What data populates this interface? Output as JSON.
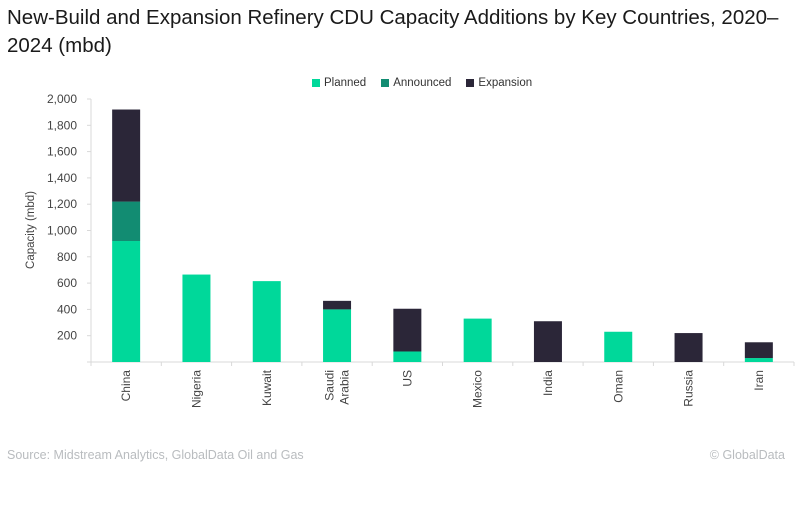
{
  "chart_data": {
    "type": "bar",
    "stacked": true,
    "title": "New-Build and Expansion Refinery CDU Capacity Additions by Key Countries, 2020–2024 (mbd)",
    "xlabel": "",
    "ylabel": "Capacity (mbd)",
    "ylim": [
      0,
      2000
    ],
    "yticks": [
      200,
      400,
      600,
      800,
      1000,
      1200,
      1400,
      1600,
      1800,
      2000
    ],
    "ytick_labels": [
      "200",
      "400",
      "600",
      "800",
      "1,000",
      "1,200",
      "1,400",
      "1,600",
      "1,800",
      "2,000"
    ],
    "grid": false,
    "legend_position": "top-center",
    "categories": [
      "China",
      "Nigeria",
      "Kuwait",
      "Saudi Arabia",
      "US",
      "Mexico",
      "India",
      "Oman",
      "Russia",
      "Iran"
    ],
    "category_label_lines": [
      [
        "China"
      ],
      [
        "Nigeria"
      ],
      [
        "Kuwait"
      ],
      [
        "Saudi",
        "Arabia"
      ],
      [
        "US"
      ],
      [
        "Mexico"
      ],
      [
        "India"
      ],
      [
        "Oman"
      ],
      [
        "Russia"
      ],
      [
        "Iran"
      ]
    ],
    "series": [
      {
        "name": "Planned",
        "color": "#00d89a",
        "values": [
          920,
          665,
          615,
          400,
          80,
          330,
          0,
          230,
          0,
          30
        ]
      },
      {
        "name": "Announced",
        "color": "#128c72",
        "values": [
          300,
          0,
          0,
          0,
          0,
          0,
          0,
          0,
          0,
          0
        ]
      },
      {
        "name": "Expansion",
        "color": "#2b2638",
        "values": [
          700,
          0,
          0,
          65,
          325,
          0,
          310,
          0,
          220,
          120
        ]
      }
    ]
  },
  "legend": {
    "items": [
      {
        "label": "Planned",
        "color": "#00d89a"
      },
      {
        "label": "Announced",
        "color": "#128c72"
      },
      {
        "label": "Expansion",
        "color": "#2b2638"
      }
    ]
  },
  "footer": {
    "source": "Source: Midstream Analytics, GlobalData Oil and Gas",
    "credit": "© GlobalData"
  }
}
